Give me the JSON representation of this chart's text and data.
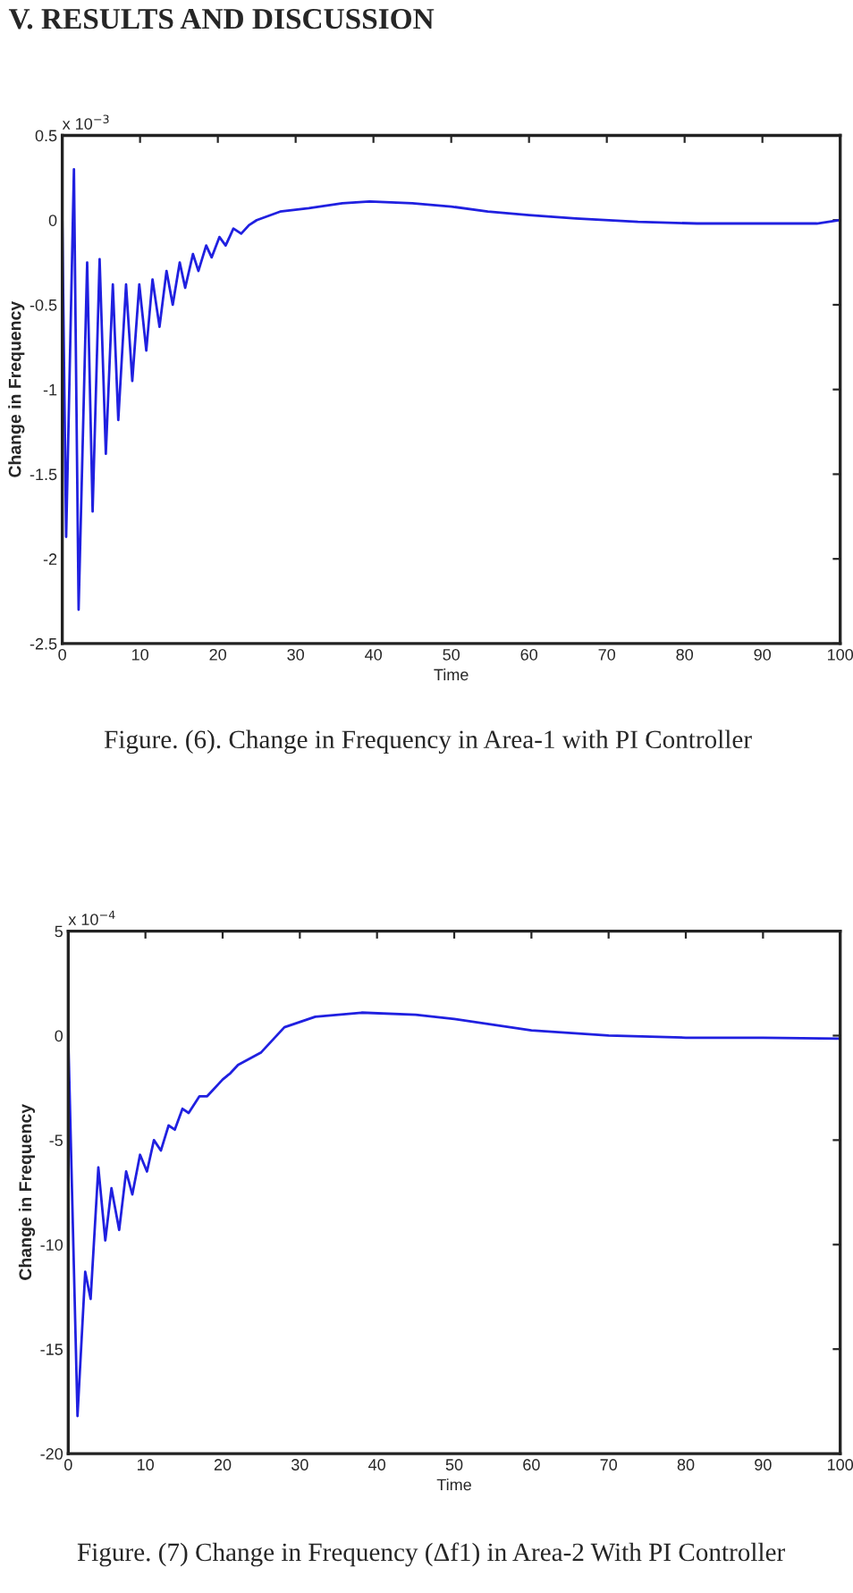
{
  "chart_data": [
    {
      "type": "line",
      "xlabel": "Time",
      "ylabel": "Change in Frequency",
      "annotations": [
        "x 10$^{−3}$",
        "Figure. (6). Change in Frequency in Area-1 with PI Controller",
        "V. RESULTS AND DISCUSSION"
      ],
      "xlim": [
        0,
        100
      ],
      "xticks": [
        0,
        10,
        20,
        30,
        40,
        50,
        60,
        70,
        80,
        90,
        100
      ],
      "ylim": [
        -2.5,
        0.5
      ],
      "yticks": [
        -2.5,
        -2,
        -1.5,
        -1,
        -0.5,
        0,
        0.5
      ],
      "grid": false,
      "legend": false,
      "series": [
        {
          "color": "#2020e0",
          "x": [
            0,
            0.5,
            1.5,
            2.1,
            3.2,
            3.9,
            4.8,
            5.6,
            6.5,
            7.2,
            8.2,
            9.0,
            9.9,
            10.8,
            11.6,
            12.5,
            13.4,
            14.2,
            15.1,
            15.8,
            16.8,
            17.5,
            18.5,
            19.2,
            20.2,
            21,
            22,
            23,
            24,
            25,
            28,
            31.7,
            36,
            39.5,
            45,
            50,
            54.7,
            60,
            66,
            74,
            81.6,
            90,
            97,
            100
          ],
          "values": [
            0,
            -1.87,
            0.3,
            -2.3,
            -0.25,
            -1.72,
            -0.23,
            -1.38,
            -0.38,
            -1.18,
            -0.38,
            -0.95,
            -0.38,
            -0.77,
            -0.35,
            -0.63,
            -0.3,
            -0.5,
            -0.25,
            -0.4,
            -0.2,
            -0.3,
            -0.15,
            -0.22,
            -0.1,
            -0.15,
            -0.05,
            -0.08,
            -0.03,
            0.0,
            0.05,
            0.07,
            0.1,
            0.11,
            0.1,
            0.08,
            0.05,
            0.03,
            0.01,
            -0.01,
            -0.02,
            -0.02,
            -0.02,
            0.0
          ]
        }
      ]
    },
    {
      "type": "line",
      "xlabel": "Time",
      "ylabel": "Change in Frequency",
      "annotations": [
        "x 10$^{−4}$",
        "Figure. (7) Change in Frequency (Δf1) in Area-2 With PI Controller"
      ],
      "xlim": [
        0,
        100
      ],
      "xticks": [
        0,
        10,
        20,
        30,
        40,
        50,
        60,
        70,
        80,
        90,
        100
      ],
      "ylim": [
        -20,
        5
      ],
      "yticks": [
        -20,
        -15,
        -10,
        -5,
        0,
        5
      ],
      "grid": false,
      "legend": false,
      "series": [
        {
          "color": "#2020e0",
          "x": [
            0,
            1.2,
            2.2,
            2.9,
            3.9,
            4.8,
            5.6,
            6.6,
            7.5,
            8.3,
            9.3,
            10.2,
            11.1,
            12,
            13,
            13.8,
            14.8,
            15.6,
            17,
            18,
            20,
            21,
            22,
            25,
            28,
            32,
            38,
            45,
            50,
            60,
            70,
            80,
            90,
            100
          ],
          "values": [
            0,
            -18.2,
            -11.3,
            -12.6,
            -6.3,
            -9.8,
            -7.3,
            -9.3,
            -6.5,
            -7.6,
            -5.7,
            -6.5,
            -5.0,
            -5.5,
            -4.3,
            -4.5,
            -3.5,
            -3.7,
            -2.9,
            -2.9,
            -2.1,
            -1.8,
            -1.4,
            -0.8,
            0.4,
            0.9,
            1.1,
            1.0,
            0.8,
            0.25,
            0.0,
            -0.1,
            -0.1,
            -0.15
          ]
        }
      ]
    }
  ]
}
